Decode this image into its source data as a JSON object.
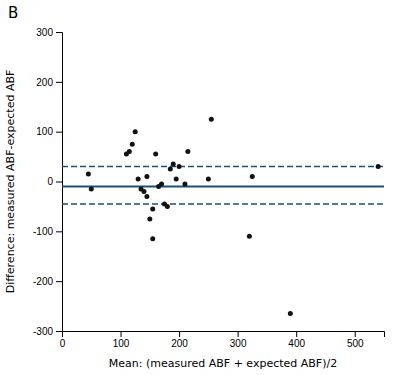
{
  "chart_data": {
    "type": "scatter",
    "title": "B",
    "xlabel": "Mean: (measured ABF + expected ABF)/2",
    "ylabel": "Difference: measured ABF-expected ABF",
    "x": [
      45,
      50,
      110,
      115,
      120,
      125,
      130,
      135,
      140,
      145,
      145,
      150,
      155,
      155,
      160,
      165,
      170,
      175,
      180,
      185,
      190,
      195,
      200,
      210,
      215,
      250,
      255,
      320,
      325,
      390,
      540
    ],
    "values": [
      15,
      -15,
      55,
      60,
      75,
      100,
      5,
      -15,
      -20,
      -30,
      10,
      -75,
      -55,
      -115,
      55,
      -10,
      -5,
      -45,
      -50,
      25,
      35,
      5,
      30,
      -5,
      60,
      5,
      125,
      -110,
      10,
      -265,
      30
    ],
    "color": "#111111",
    "hlines": [
      {
        "value": -10,
        "line_style": "solid",
        "color": "#1a4f7a"
      },
      {
        "value": 30,
        "line_style": "dashed",
        "color": "#1a4f7a"
      },
      {
        "value": -45,
        "line_style": "dashed",
        "color": "#1a4f7a"
      }
    ],
    "xlim": [
      0,
      550
    ],
    "ylim": [
      -300,
      300
    ],
    "xticks": [
      0,
      100,
      200,
      300,
      400,
      500
    ],
    "yticks": [
      -300,
      -200,
      -100,
      0,
      100,
      200,
      300
    ],
    "grid": false
  }
}
